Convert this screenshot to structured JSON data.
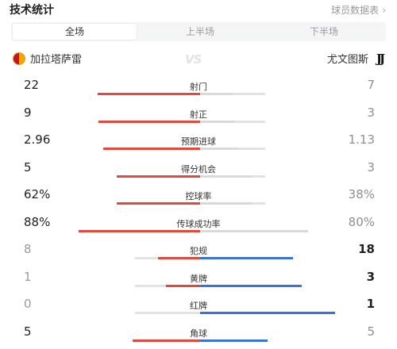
{
  "header": {
    "title": "技术统计",
    "link_label": "球员数据表",
    "link_icon": "chevron-right-icon"
  },
  "tabs": [
    {
      "label": "全场",
      "active": true
    },
    {
      "label": "上半场",
      "active": false
    },
    {
      "label": "下半场",
      "active": false
    }
  ],
  "teams": {
    "home": {
      "name": "加拉塔萨雷",
      "crest_colors": [
        "#f7a400",
        "#c8102e"
      ]
    },
    "vs_mark": "VS",
    "away": {
      "name": "尤文图斯",
      "crest_text": "JJ"
    }
  },
  "colors": {
    "home_bar": "#e0493c",
    "away_bar": "#3a72d8",
    "track": "#e2e2e2"
  },
  "stats": [
    {
      "label": "射门",
      "home": "22",
      "away": "7",
      "home_share": 0.76,
      "away_share": 0.24
    },
    {
      "label": "射正",
      "home": "9",
      "away": "3",
      "home_share": 0.75,
      "away_share": 0.25
    },
    {
      "label": "预期进球",
      "home": "2.96",
      "away": "1.13",
      "home_share": 0.72,
      "away_share": 0.28
    },
    {
      "label": "得分机会",
      "home": "5",
      "away": "3",
      "home_share": 0.62,
      "away_share": 0.38
    },
    {
      "label": "控球率",
      "home": "62%",
      "away": "38%",
      "home_share": 0.62,
      "away_share": 0.38
    },
    {
      "label": "传球成功率",
      "home": "88%",
      "away": "80%",
      "home_share": 0.9,
      "away_share": 0.8
    },
    {
      "label": "犯规",
      "home": "8",
      "away": "18",
      "home_share": 0.31,
      "away_share": 0.69
    },
    {
      "label": "黄牌",
      "home": "1",
      "away": "3",
      "home_share": 0.25,
      "away_share": 0.75
    },
    {
      "label": "红牌",
      "home": "0",
      "away": "1",
      "home_share": 0.0,
      "away_share": 1.0
    },
    {
      "label": "角球",
      "home": "5",
      "away": "5",
      "home_share": 0.5,
      "away_share": 0.5
    }
  ]
}
